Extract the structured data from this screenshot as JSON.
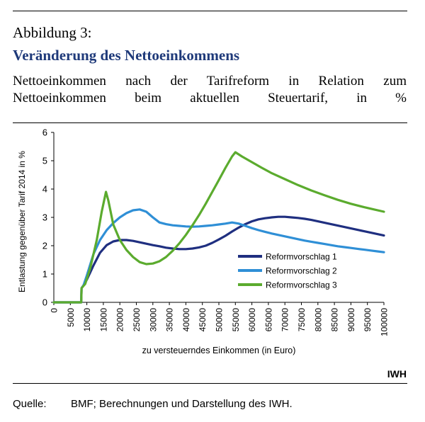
{
  "figure": {
    "label": "Abbildung 3:",
    "title": "Veränderung des Nettoeinkommens",
    "subtitle": "Nettoeinkommen nach der Tarifreform in Relation zum Nettoeinkommen beim aktuellen Steuertarif, in %",
    "publisher": "IWH",
    "source_label": "Quelle:",
    "source_text": "BMF; Berechnungen und Darstellung des IWH."
  },
  "chart_data": {
    "type": "line",
    "title": "",
    "xlabel": "zu versteuerndes Einkommen (in Euro)",
    "ylabel": "Entlastung gegenüber Tarif 2014 in %",
    "xlim": [
      0,
      100000
    ],
    "ylim": [
      0,
      6
    ],
    "x_ticks": [
      0,
      5000,
      10000,
      15000,
      20000,
      25000,
      30000,
      35000,
      40000,
      45000,
      50000,
      55000,
      60000,
      65000,
      70000,
      75000,
      80000,
      85000,
      90000,
      95000,
      100000
    ],
    "y_ticks": [
      0,
      1,
      2,
      3,
      4,
      5,
      6
    ],
    "grid": false,
    "legend_position": "right",
    "series": [
      {
        "name": "Reformvorschlag 1",
        "color": "#1f2f80",
        "points": [
          [
            0,
            0
          ],
          [
            8300,
            0
          ],
          [
            8400,
            0.5
          ],
          [
            9000,
            0.6
          ],
          [
            10000,
            0.8
          ],
          [
            12000,
            1.3
          ],
          [
            14000,
            1.75
          ],
          [
            16000,
            2.02
          ],
          [
            18000,
            2.15
          ],
          [
            20000,
            2.2
          ],
          [
            22000,
            2.2
          ],
          [
            24000,
            2.17
          ],
          [
            26000,
            2.12
          ],
          [
            28000,
            2.07
          ],
          [
            30000,
            2.02
          ],
          [
            32000,
            1.98
          ],
          [
            34000,
            1.93
          ],
          [
            36000,
            1.9
          ],
          [
            38000,
            1.88
          ],
          [
            40000,
            1.88
          ],
          [
            42000,
            1.9
          ],
          [
            44000,
            1.94
          ],
          [
            46000,
            2.0
          ],
          [
            48000,
            2.1
          ],
          [
            50000,
            2.22
          ],
          [
            52000,
            2.35
          ],
          [
            54000,
            2.5
          ],
          [
            56000,
            2.64
          ],
          [
            58000,
            2.76
          ],
          [
            60000,
            2.86
          ],
          [
            62000,
            2.93
          ],
          [
            64000,
            2.97
          ],
          [
            66000,
            3.0
          ],
          [
            68000,
            3.02
          ],
          [
            70000,
            3.02
          ],
          [
            72000,
            3.0
          ],
          [
            74000,
            2.98
          ],
          [
            76000,
            2.95
          ],
          [
            78000,
            2.91
          ],
          [
            80000,
            2.86
          ],
          [
            82000,
            2.81
          ],
          [
            84000,
            2.76
          ],
          [
            86000,
            2.71
          ],
          [
            88000,
            2.66
          ],
          [
            90000,
            2.61
          ],
          [
            92000,
            2.56
          ],
          [
            94000,
            2.51
          ],
          [
            96000,
            2.46
          ],
          [
            98000,
            2.41
          ],
          [
            100000,
            2.36
          ]
        ]
      },
      {
        "name": "Reformvorschlag 2",
        "color": "#2f8fd6",
        "points": [
          [
            0,
            0
          ],
          [
            8300,
            0
          ],
          [
            8400,
            0.5
          ],
          [
            9000,
            0.6
          ],
          [
            10000,
            0.95
          ],
          [
            12000,
            1.7
          ],
          [
            14000,
            2.2
          ],
          [
            16000,
            2.55
          ],
          [
            18000,
            2.8
          ],
          [
            20000,
            3.0
          ],
          [
            22000,
            3.15
          ],
          [
            24000,
            3.25
          ],
          [
            26000,
            3.28
          ],
          [
            28000,
            3.2
          ],
          [
            30000,
            3.0
          ],
          [
            32000,
            2.82
          ],
          [
            34000,
            2.76
          ],
          [
            36000,
            2.72
          ],
          [
            38000,
            2.7
          ],
          [
            40000,
            2.68
          ],
          [
            42000,
            2.67
          ],
          [
            44000,
            2.68
          ],
          [
            46000,
            2.7
          ],
          [
            48000,
            2.72
          ],
          [
            50000,
            2.75
          ],
          [
            52000,
            2.78
          ],
          [
            54000,
            2.82
          ],
          [
            56000,
            2.78
          ],
          [
            58000,
            2.7
          ],
          [
            60000,
            2.62
          ],
          [
            62000,
            2.55
          ],
          [
            64000,
            2.49
          ],
          [
            66000,
            2.43
          ],
          [
            68000,
            2.38
          ],
          [
            70000,
            2.33
          ],
          [
            72000,
            2.28
          ],
          [
            74000,
            2.23
          ],
          [
            76000,
            2.18
          ],
          [
            78000,
            2.14
          ],
          [
            80000,
            2.1
          ],
          [
            82000,
            2.06
          ],
          [
            84000,
            2.02
          ],
          [
            86000,
            1.98
          ],
          [
            88000,
            1.95
          ],
          [
            90000,
            1.92
          ],
          [
            92000,
            1.89
          ],
          [
            94000,
            1.86
          ],
          [
            96000,
            1.83
          ],
          [
            98000,
            1.8
          ],
          [
            100000,
            1.77
          ]
        ]
      },
      {
        "name": "Reformvorschlag 3",
        "color": "#5bab2e",
        "points": [
          [
            0,
            0
          ],
          [
            8300,
            0
          ],
          [
            8400,
            0.5
          ],
          [
            9500,
            0.65
          ],
          [
            11000,
            1.2
          ],
          [
            13000,
            2.2
          ],
          [
            14500,
            3.2
          ],
          [
            15800,
            3.9
          ],
          [
            16500,
            3.6
          ],
          [
            18000,
            2.75
          ],
          [
            20000,
            2.2
          ],
          [
            22000,
            1.85
          ],
          [
            24000,
            1.6
          ],
          [
            26000,
            1.42
          ],
          [
            28000,
            1.35
          ],
          [
            30000,
            1.37
          ],
          [
            32000,
            1.45
          ],
          [
            34000,
            1.6
          ],
          [
            36000,
            1.82
          ],
          [
            38000,
            2.08
          ],
          [
            40000,
            2.38
          ],
          [
            42000,
            2.72
          ],
          [
            44000,
            3.08
          ],
          [
            46000,
            3.48
          ],
          [
            48000,
            3.9
          ],
          [
            50000,
            4.32
          ],
          [
            52000,
            4.75
          ],
          [
            54000,
            5.15
          ],
          [
            55000,
            5.3
          ],
          [
            57000,
            5.15
          ],
          [
            60000,
            4.95
          ],
          [
            63000,
            4.75
          ],
          [
            66000,
            4.56
          ],
          [
            70000,
            4.35
          ],
          [
            74000,
            4.14
          ],
          [
            78000,
            3.95
          ],
          [
            82000,
            3.78
          ],
          [
            86000,
            3.62
          ],
          [
            90000,
            3.48
          ],
          [
            94000,
            3.36
          ],
          [
            97000,
            3.28
          ],
          [
            100000,
            3.2
          ]
        ]
      }
    ]
  }
}
